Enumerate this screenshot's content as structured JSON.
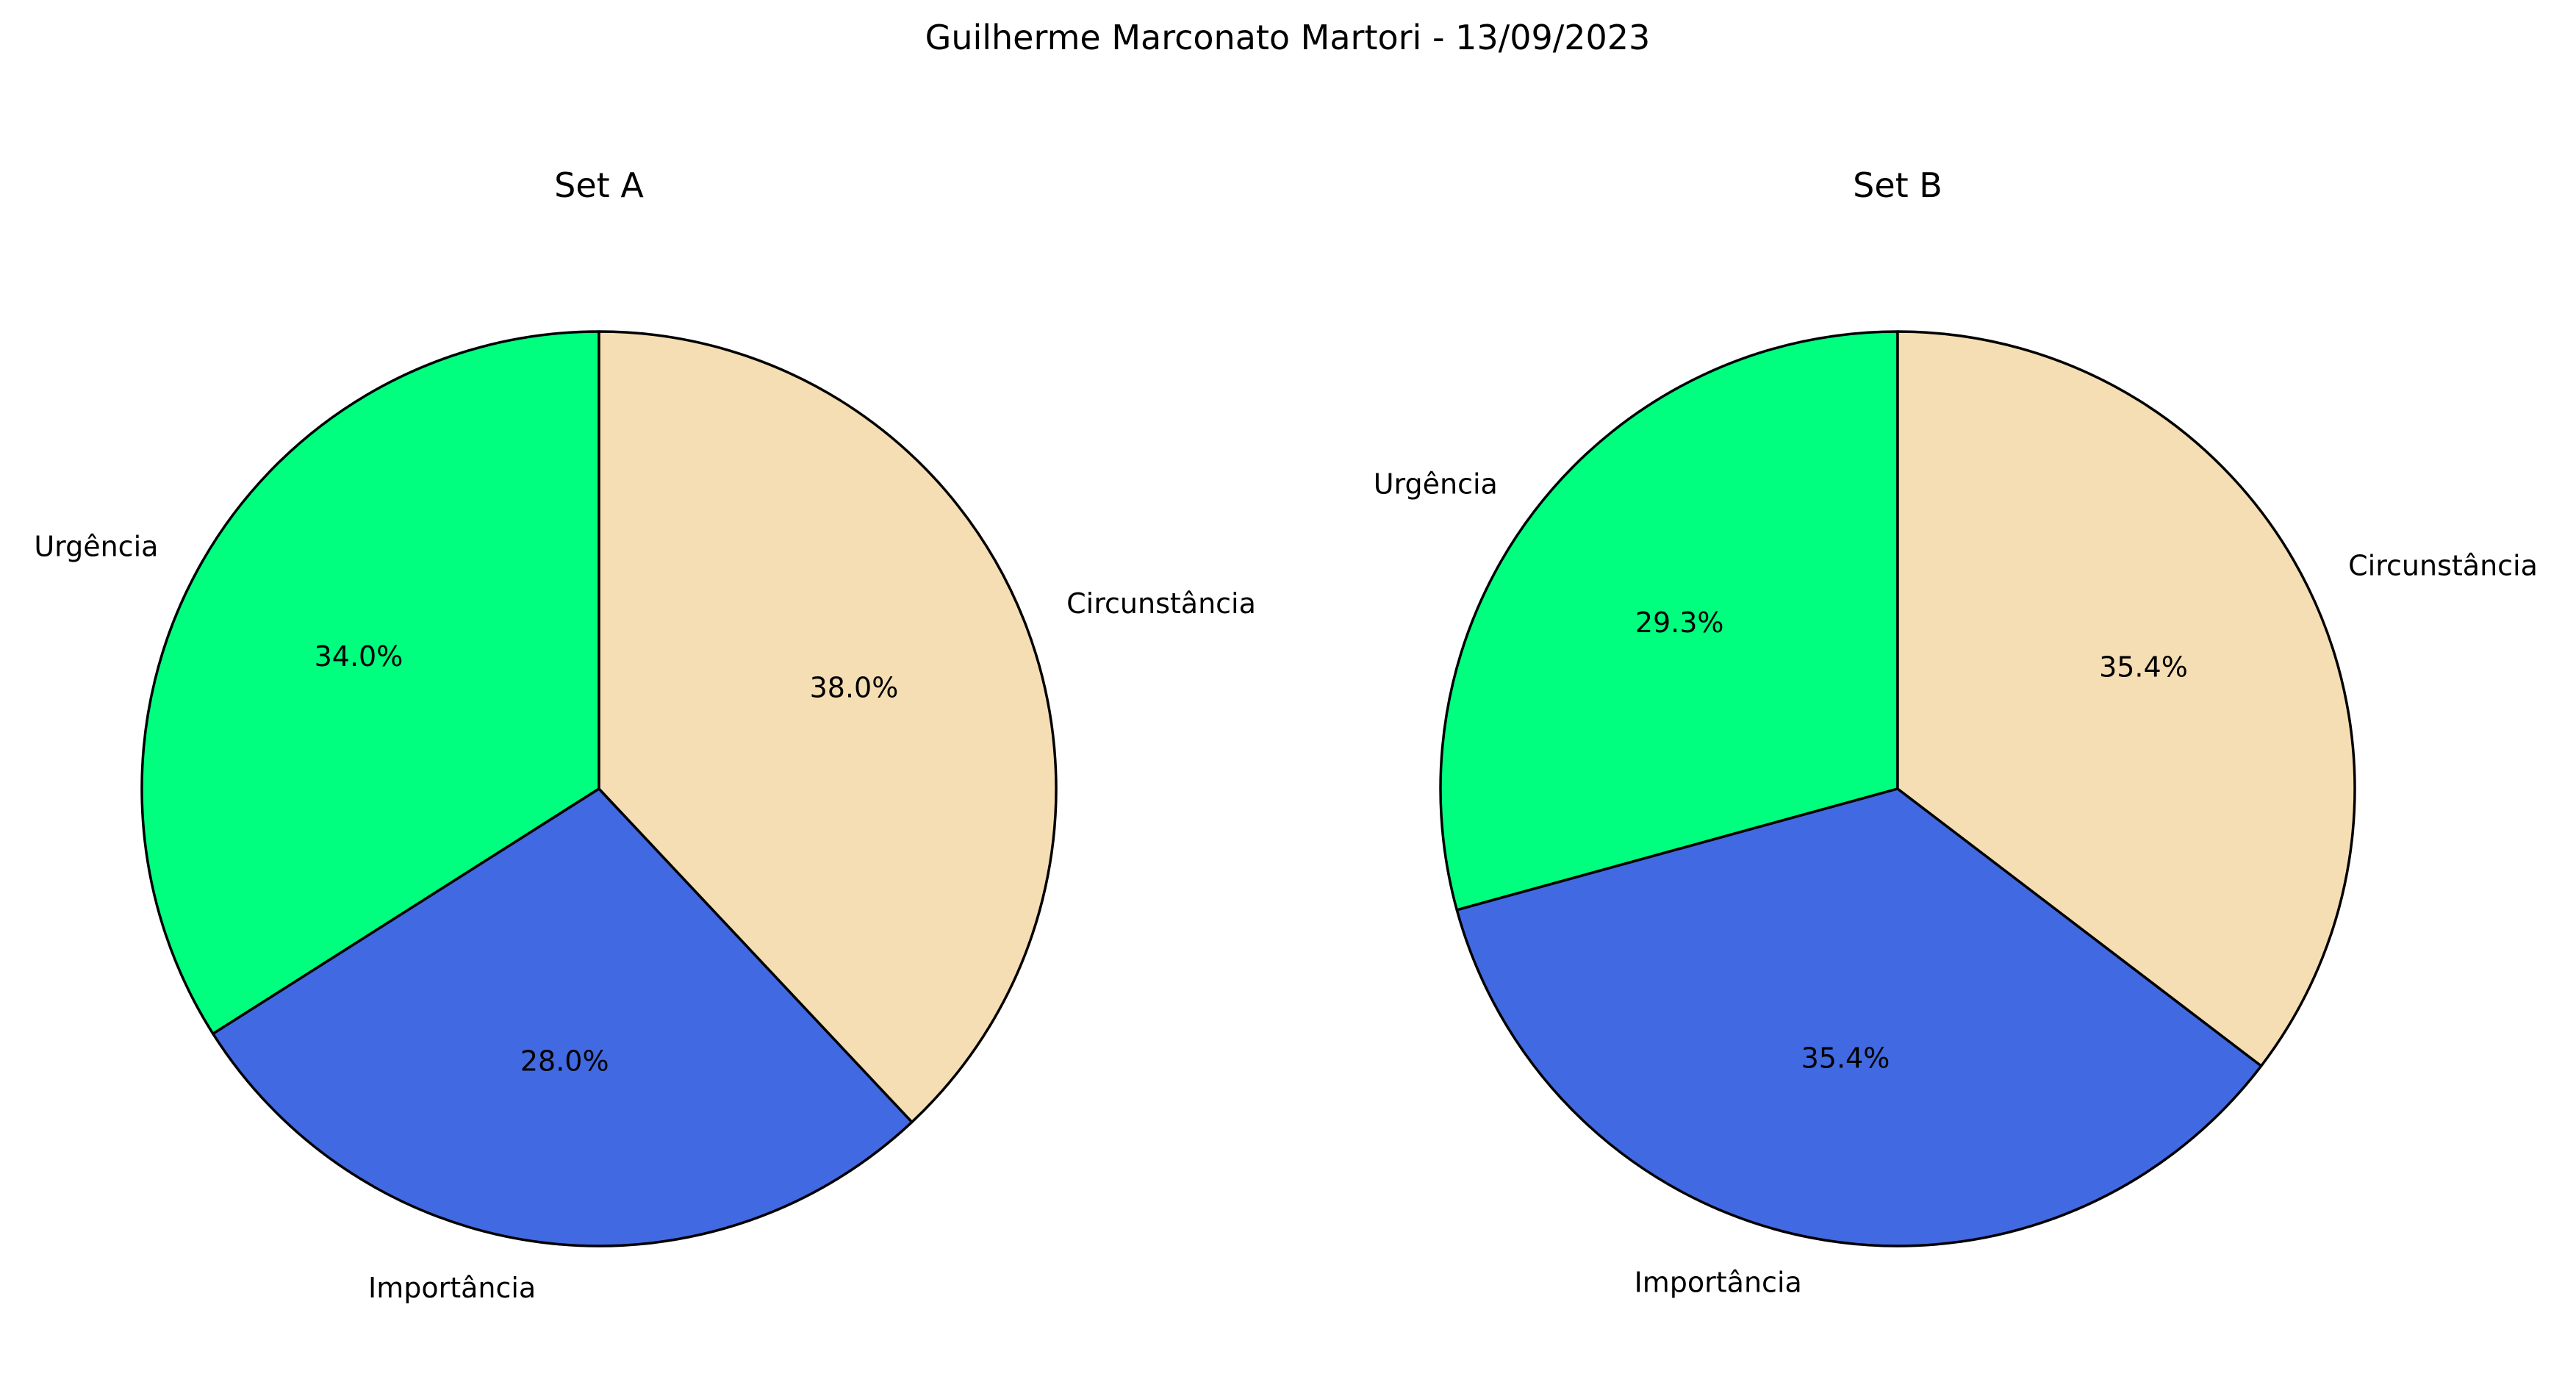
{
  "figure": {
    "suptitle": "Guilherme Marconato Martori - 13/09/2023"
  },
  "chart_data": [
    {
      "type": "pie",
      "title": "Set A",
      "start_angle": 90,
      "direction": "counterclockwise",
      "labels": [
        "Urgência",
        "Importância",
        "Circunstância"
      ],
      "values": [
        34.0,
        28.0,
        38.0
      ],
      "autopct": [
        "34.0%",
        "28.0%",
        "38.0%"
      ],
      "colors": [
        "#00ff7f",
        "#4169e1",
        "#f5deb3"
      ],
      "edgecolor": "#000000"
    },
    {
      "type": "pie",
      "title": "Set B",
      "start_angle": 90,
      "direction": "counterclockwise",
      "labels": [
        "Urgência",
        "Importância",
        "Circunstância"
      ],
      "values": [
        29.3,
        35.4,
        35.4
      ],
      "autopct": [
        "29.3%",
        "35.4%",
        "35.4%"
      ],
      "colors": [
        "#00ff7f",
        "#4169e1",
        "#f5deb3"
      ],
      "edgecolor": "#000000"
    }
  ]
}
